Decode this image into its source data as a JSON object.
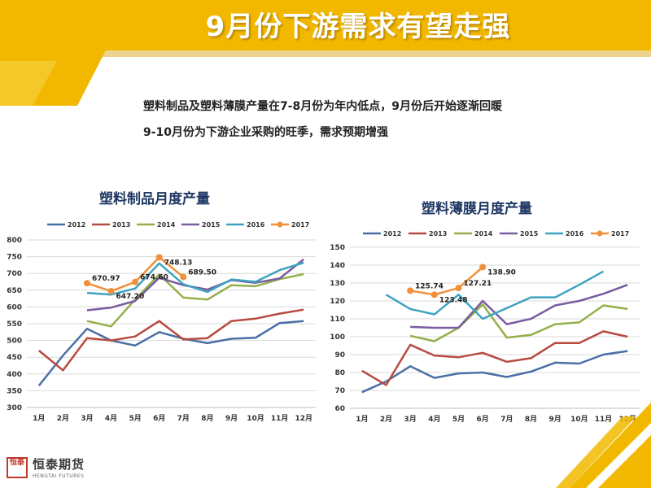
{
  "title": "9月份下游需求有望走强",
  "subtitle_lines": [
    "塑料制品及塑料薄膜产量在7-8月份为年内低点，9月份后开始逐渐回暖",
    "9-10月份为下游企业采购的旺季，需求预期增强"
  ],
  "colors": {
    "banner": "#f2b800",
    "banner_light": "#f7cf3a",
    "accent": "#e8a800"
  },
  "logo": {
    "name": "恒泰期货",
    "english": "HENGTAI FUTURES",
    "seal": "恒泰"
  },
  "chart_data": [
    {
      "type": "line",
      "title": "塑料制品月度产量",
      "categories": [
        "1月",
        "2月",
        "3月",
        "4月",
        "5月",
        "6月",
        "7月",
        "8月",
        "9月",
        "10月",
        "11月",
        "12月"
      ],
      "ylim": [
        300,
        800
      ],
      "yticks": [
        300,
        350,
        400,
        450,
        500,
        550,
        600,
        650,
        700,
        750,
        800
      ],
      "grid": true,
      "legend": "top",
      "series": [
        {
          "name": "2012",
          "color": "#4a6fa5",
          "values": [
            365,
            455,
            535,
            500,
            485,
            525,
            505,
            492,
            505,
            508,
            552,
            558
          ]
        },
        {
          "name": "2013",
          "color": "#b84a40",
          "values": [
            470,
            411,
            507,
            500,
            512,
            558,
            503,
            507,
            558,
            565,
            580,
            592
          ]
        },
        {
          "name": "2014",
          "color": "#94b04a",
          "values": [
            null,
            null,
            558,
            542,
            622,
            697,
            628,
            622,
            665,
            662,
            683,
            698
          ]
        },
        {
          "name": "2015",
          "color": "#7a5ca0",
          "values": [
            null,
            null,
            590,
            598,
            618,
            687,
            665,
            652,
            680,
            672,
            685,
            742
          ]
        },
        {
          "name": "2016",
          "color": "#3ea3c0",
          "values": [
            null,
            null,
            642,
            637,
            655,
            730,
            668,
            645,
            682,
            675,
            710,
            732
          ]
        },
        {
          "name": "2017",
          "color": "#f0903a",
          "marker": true,
          "values": [
            670.97,
            647.2,
            674.6,
            748.13,
            689.5,
            null,
            null,
            null,
            null,
            null,
            null,
            null
          ],
          "x_offset": 2,
          "labels": [
            "670.97",
            "647.20",
            "674.60",
            "748.13",
            "689.50"
          ]
        }
      ]
    },
    {
      "type": "line",
      "title": "塑料薄膜月度产量",
      "categories": [
        "1月",
        "2月",
        "3月",
        "4月",
        "5月",
        "6月",
        "7月",
        "8月",
        "9月",
        "10月",
        "11月",
        "12月"
      ],
      "ylim": [
        60,
        150
      ],
      "yticks": [
        60,
        70,
        80,
        90,
        100,
        110,
        120,
        130,
        140,
        150
      ],
      "grid": true,
      "legend": "top",
      "series": [
        {
          "name": "2012",
          "color": "#4a6fa5",
          "values": [
            69,
            75,
            83.5,
            77,
            79.5,
            80,
            77.5,
            80.5,
            85.5,
            85,
            90,
            92
          ]
        },
        {
          "name": "2013",
          "color": "#b84a40",
          "values": [
            81,
            73,
            95.5,
            89.5,
            88.5,
            91,
            86,
            88,
            96.5,
            96.5,
            103,
            100
          ]
        },
        {
          "name": "2014",
          "color": "#94b04a",
          "values": [
            null,
            null,
            100.5,
            97.5,
            105,
            118,
            99.5,
            101,
            107,
            108,
            117.5,
            115.5
          ]
        },
        {
          "name": "2015",
          "color": "#7a5ca0",
          "values": [
            null,
            null,
            105.5,
            105,
            105,
            120,
            107,
            110,
            117.5,
            120,
            124,
            129
          ]
        },
        {
          "name": "2016",
          "color": "#3ea3c0",
          "values": [
            null,
            123.5,
            115.5,
            112.5,
            123.5,
            110,
            116,
            122,
            122,
            129,
            136.5,
            null
          ]
        },
        {
          "name": "2017",
          "color": "#f0903a",
          "marker": true,
          "values": [
            null,
            null,
            125.74,
            123.48,
            127.21,
            138.9,
            null,
            null,
            null,
            null,
            null,
            null
          ],
          "labels": [
            "125.74",
            "123.48",
            "127.21",
            "138.90"
          ]
        }
      ]
    }
  ]
}
